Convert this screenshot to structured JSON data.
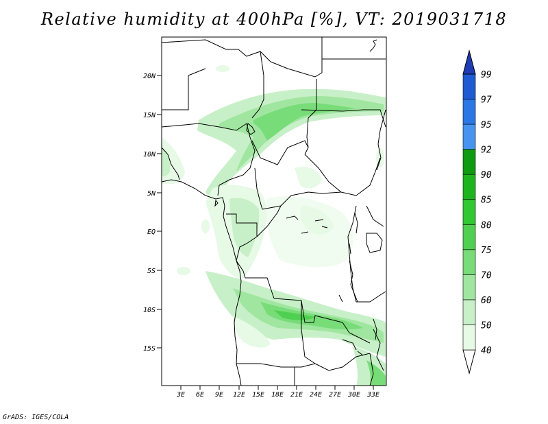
{
  "title": "Relative humidity at 400hPa [%], VT: 2019031718",
  "credit": "GrADS: IGES/COLA",
  "lat_labels": [
    "20N",
    "15N",
    "10N",
    "5N",
    "EQ",
    "5S",
    "10S",
    "15S"
  ],
  "lon_labels": [
    "3E",
    "6E",
    "9E",
    "12E",
    "15E",
    "18E",
    "21E",
    "24E",
    "27E",
    "30E",
    "33E"
  ],
  "colorbar": {
    "labels": [
      "40",
      "50",
      "60",
      "70",
      "75",
      "80",
      "85",
      "90",
      "92",
      "95",
      "97",
      "99"
    ],
    "colors": [
      "#ffffff",
      "#e6fae6",
      "#c8f0c8",
      "#a0e6a0",
      "#78dc78",
      "#50d050",
      "#32c832",
      "#1eb41e",
      "#0f9b0f",
      "#4694f0",
      "#2a78e6",
      "#1e5ad2",
      "#1e3cb4"
    ]
  }
}
